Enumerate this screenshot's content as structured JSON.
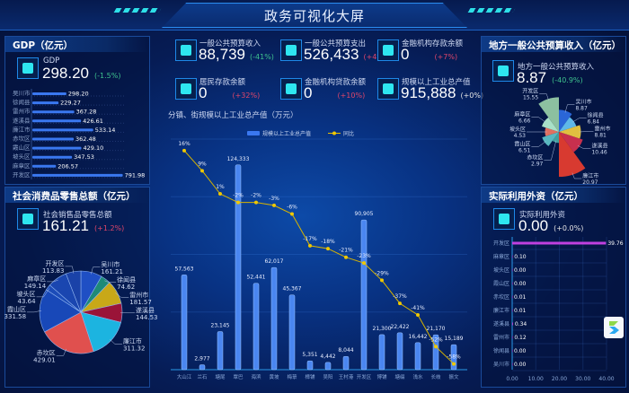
{
  "header": {
    "title": "政务可视化大屏"
  },
  "gdp": {
    "title": "GDP（亿元）",
    "label": "GDP",
    "value": "298.20",
    "change": "(-1.5%)",
    "icon": "ribbon-badge-icon",
    "items": [
      {
        "name": "吴川市",
        "value": 298.2
      },
      {
        "name": "徐闻县",
        "value": 229.27
      },
      {
        "name": "雷州市",
        "value": 367.28
      },
      {
        "name": "遂溪县",
        "value": 426.61
      },
      {
        "name": "廉江市",
        "value": 533.14
      },
      {
        "name": "赤坎区",
        "value": 362.48
      },
      {
        "name": "霞山区",
        "value": 429.1
      },
      {
        "name": "坡头区",
        "value": 347.53
      },
      {
        "name": "麻章区",
        "value": 206.57
      },
      {
        "name": "开发区",
        "value": 791.98
      }
    ]
  },
  "retail": {
    "title": "社会消费品零售总额（亿元）",
    "label": "社会销售品零售总额",
    "value": "161.21",
    "change": "(+1.2%)",
    "icon": "ribbon-badge-icon",
    "slices": [
      {
        "name": "吴川市",
        "value": 161.21,
        "color": "#1f4fc4"
      },
      {
        "name": "徐闻县",
        "value": 74.62,
        "color": "#1e8a78"
      },
      {
        "name": "雷州市",
        "value": 181.57,
        "color": "#c8a818"
      },
      {
        "name": "遂溪县",
        "value": 144.53,
        "color": "#9a1438"
      },
      {
        "name": "廉江市",
        "value": 311.32,
        "color": "#1cb4e0"
      },
      {
        "name": "赤坎区",
        "value": 429.01,
        "color": "#e0504e"
      },
      {
        "name": "霞山区",
        "value": 331.58,
        "color": "#1848b8"
      },
      {
        "name": "坡头区",
        "value": 43.64,
        "color": "#1c4cb8"
      },
      {
        "name": "麻章区",
        "value": 149.14,
        "color": "#1a46b0"
      },
      {
        "name": "开发区",
        "value": 113.83,
        "color": "#1a42a8"
      }
    ]
  },
  "kpis": [
    {
      "label": "一般公共预算收入",
      "value": "88,739",
      "change": "(-41%)",
      "tone": "green",
      "icon": "cup-icon"
    },
    {
      "label": "一般公共预算支出",
      "value": "526,433",
      "change": "(+4%)",
      "tone": "red",
      "icon": "cup-icon"
    },
    {
      "label": "金融机构存款余额",
      "value": "0",
      "change": "(+7%)",
      "tone": "red",
      "icon": "bag-icon"
    },
    {
      "label": "居民存款余额",
      "value": "0",
      "change": "(+32%)",
      "tone": "red",
      "icon": "gauge-icon"
    },
    {
      "label": "金融机构贷款余额",
      "value": "0",
      "change": "(+10%)",
      "tone": "red",
      "icon": "ribbon-badge-icon"
    },
    {
      "label": "规模以上工业总产值",
      "value": "915,888",
      "change": "(+0%)",
      "tone": "white",
      "icon": "card-icon"
    }
  ],
  "chart_data": [
    {
      "type": "bar",
      "title": "分镇、街规模以上工业总产值（万元）",
      "categories": [
        "大山江",
        "兰石",
        "塘尾",
        "覃巴",
        "海滨",
        "黄坡",
        "梅菉",
        "樟铺",
        "吴阳",
        "王村港",
        "开发区",
        "博铺",
        "塘缀",
        "浅水",
        "长岐",
        "振文"
      ],
      "series": [
        {
          "name": "规模以上工业总产值",
          "type": "bar",
          "values": [
            57563,
            2977,
            23145,
            124333,
            52441,
            62017,
            45367,
            5351,
            4442,
            8044,
            90905,
            21300,
            22422,
            16442,
            21170,
            15189
          ]
        },
        {
          "name": "同比",
          "type": "line",
          "unit": "%",
          "values": [
            16,
            9,
            1,
            -2,
            -2,
            -3,
            -6,
            -17,
            -18,
            -21,
            -23,
            -29,
            -37,
            -41,
            -52,
            -58
          ]
        }
      ],
      "ylim": [
        0,
        140000
      ],
      "y2lim": [
        -60,
        20
      ],
      "legend": "top"
    },
    {
      "type": "pie",
      "title": "地方一般公共预算收入（亿元）",
      "rose": true,
      "slices": [
        {
          "name": "吴川市",
          "value": 8.87,
          "color": "#2a66d8"
        },
        {
          "name": "徐闻县",
          "value": 6.84,
          "color": "#5fb8e8"
        },
        {
          "name": "雷州市",
          "value": 8.81,
          "color": "#e0c040"
        },
        {
          "name": "遂溪县",
          "value": 10.46,
          "color": "#c8304e"
        },
        {
          "name": "廉江市",
          "value": 20.97,
          "color": "#d83a30"
        },
        {
          "name": "赤坎区",
          "value": 2.97,
          "color": "#40a0a0"
        },
        {
          "name": "霞山区",
          "value": 6.51,
          "color": "#58b8c0"
        },
        {
          "name": "坡头区",
          "value": 4.53,
          "color": "#e07060"
        },
        {
          "name": "麻章区",
          "value": 6.66,
          "color": "#a8e0c8"
        },
        {
          "name": "开发区",
          "value": 15.55,
          "color": "#8cc0a0"
        }
      ]
    },
    {
      "type": "bar",
      "orientation": "horizontal",
      "title": "实际利用外资（亿元）",
      "categories": [
        "开发区",
        "麻章区",
        "坡头区",
        "霞山区",
        "赤坎区",
        "廉江市",
        "遂溪县",
        "雷州市",
        "徐闻县",
        "吴川市"
      ],
      "values": [
        39.76,
        0.1,
        0.0,
        0.0,
        0.01,
        0.01,
        0.34,
        0.12,
        0.0,
        0.0
      ],
      "xlim": [
        0,
        40
      ],
      "xticks": [
        "0.00",
        "10.00",
        "20.00",
        "30.00",
        "40.00"
      ]
    }
  ],
  "budget": {
    "title": "地方一般公共预算收入（亿元）",
    "label": "地方一般公共预算收入",
    "value": "8.87",
    "change": "(-40.9%)"
  },
  "fdi": {
    "title": "实际利用外资（亿元）",
    "label": "实际利用外资",
    "value": "0.00",
    "change": "(+0.0%)",
    "bar_color": "#c040e0"
  }
}
